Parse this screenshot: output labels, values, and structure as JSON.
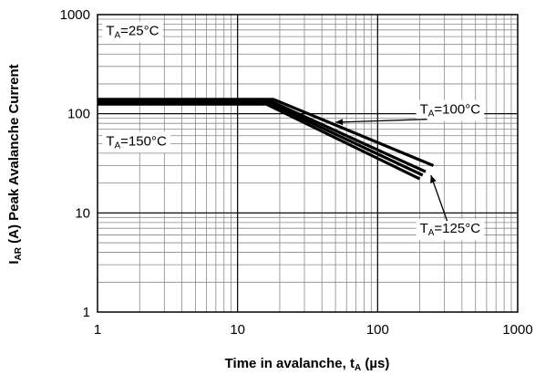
{
  "chart_data": {
    "type": "line",
    "x_scale": "log",
    "y_scale": "log",
    "xlim": [
      1,
      1000
    ],
    "ylim": [
      1,
      1000
    ],
    "grid": true,
    "xlabel": {
      "main": "Time in avalanche, t",
      "sub": "A",
      "unit": " (µs)"
    },
    "ylabel": {
      "main": "I",
      "sub": "AR",
      "unit": " (A) Peak Avalanche Current"
    },
    "x_ticks": [
      {
        "value": 1,
        "label": "1"
      },
      {
        "value": 10,
        "label": "10"
      },
      {
        "value": 100,
        "label": "100"
      },
      {
        "value": 1000,
        "label": "1000"
      }
    ],
    "y_ticks": [
      {
        "value": 1,
        "label": "1"
      },
      {
        "value": 10,
        "label": "10"
      },
      {
        "value": 100,
        "label": "100"
      },
      {
        "value": 1000,
        "label": "1000"
      }
    ],
    "series": [
      {
        "name": {
          "main": "T",
          "sub": "A",
          "rest": "=25°C"
        },
        "points": [
          [
            1,
            140
          ],
          [
            18,
            140
          ],
          [
            250,
            30
          ]
        ]
      },
      {
        "name": {
          "main": "T",
          "sub": "A",
          "rest": "=100°C"
        },
        "points": [
          [
            1,
            135
          ],
          [
            17,
            135
          ],
          [
            220,
            26
          ]
        ]
      },
      {
        "name": {
          "main": "T",
          "sub": "A",
          "rest": "=125°C"
        },
        "points": [
          [
            1,
            130
          ],
          [
            16.5,
            130
          ],
          [
            210,
            24
          ]
        ]
      },
      {
        "name": {
          "main": "T",
          "sub": "A",
          "rest": "=150°C"
        },
        "points": [
          [
            1,
            125
          ],
          [
            16,
            125
          ],
          [
            200,
            22
          ]
        ]
      }
    ],
    "annotations": [
      {
        "series": 0,
        "x": 1.15,
        "y": 620,
        "arrow": false
      },
      {
        "series": 1,
        "x": 200,
        "y": 100,
        "arrow": true,
        "target": [
          50,
          82
        ]
      },
      {
        "series": 3,
        "x": 1.15,
        "y": 48,
        "arrow": false
      },
      {
        "series": 2,
        "x": 200,
        "y": 6.3,
        "arrow": true,
        "target": [
          240,
          24
        ]
      }
    ]
  }
}
